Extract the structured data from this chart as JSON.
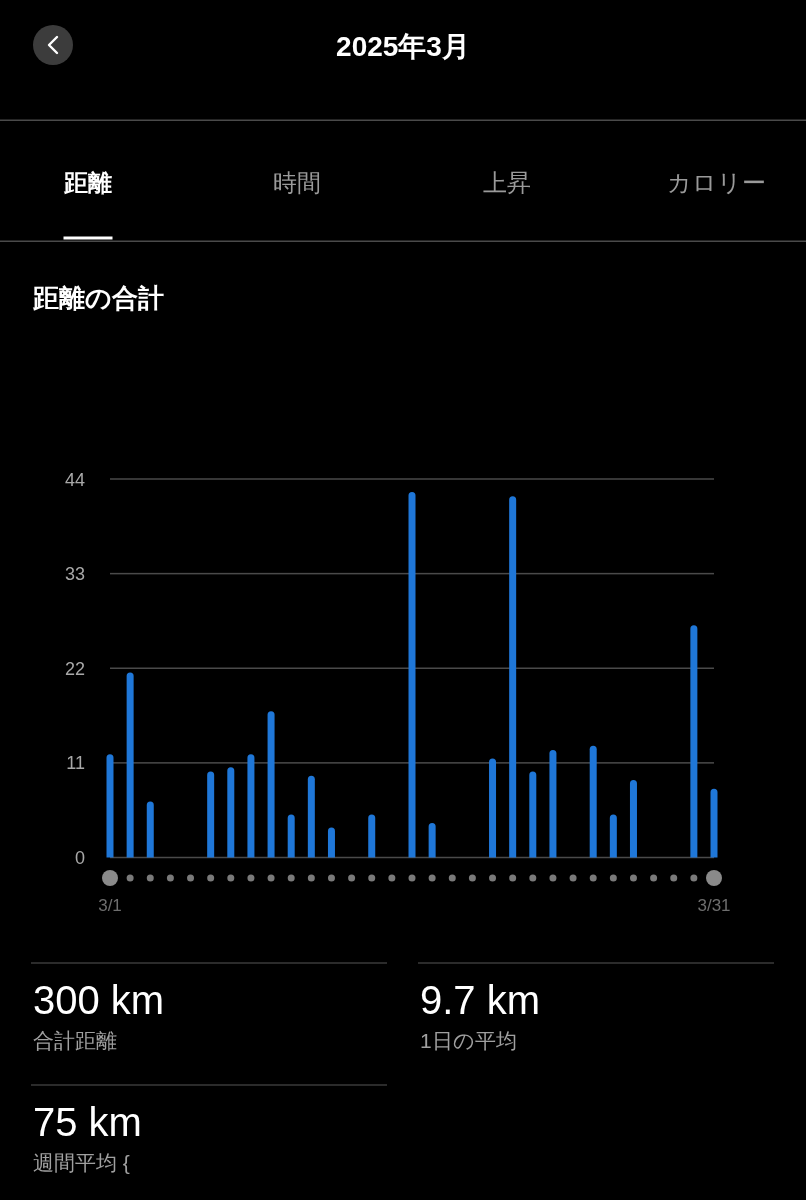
{
  "chart_data": [
    {
      "type": "other",
      "title": "2025年3月",
      "annotations": [
        "距離",
        "時間",
        "上昇",
        "カロリー"
      ]
    },
    {
      "type": "bar",
      "title": "距離の合計",
      "categories": [
        "3/1",
        null,
        null,
        null,
        null,
        null,
        null,
        null,
        null,
        null,
        null,
        null,
        null,
        null,
        null,
        null,
        null,
        null,
        null,
        null,
        null,
        null,
        null,
        null,
        null,
        null,
        null,
        null,
        null,
        null,
        "3/31"
      ],
      "values": [
        12,
        21.5,
        6.5,
        null,
        null,
        10,
        10.5,
        12,
        17,
        5,
        9.5,
        3.5,
        null,
        5,
        null,
        42.5,
        4,
        null,
        null,
        11.5,
        42,
        10,
        12.5,
        null,
        13,
        5,
        9,
        null,
        null,
        27,
        8
      ],
      "color": "#1f77d8",
      "ylim": [
        0,
        44
      ],
      "yticks": [
        0,
        11,
        22,
        33,
        44
      ],
      "grid": "y"
    },
    {
      "type": "other",
      "annotations": [
        "300 km",
        "合計距離",
        "9.7 km",
        "1日の平均",
        "75 km",
        "週間平均 {"
      ]
    }
  ]
}
